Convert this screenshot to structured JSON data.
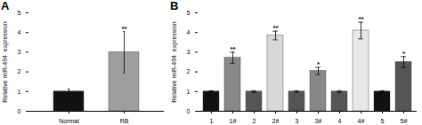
{
  "chart_data": [
    {
      "type": "bar",
      "title": "A",
      "categories": [
        "Normal",
        "RB"
      ],
      "values": [
        1.0,
        3.0
      ],
      "errors": [
        0.13,
        1.05
      ],
      "colors": [
        "#111111",
        "#9e9e9e"
      ],
      "annotations": [
        null,
        "**"
      ],
      "ylabel": "Relative miR-494  expression",
      "ylim": [
        0,
        5
      ],
      "yticks": [
        0,
        1,
        2,
        3,
        4,
        5
      ]
    },
    {
      "type": "bar",
      "title": "B",
      "categories": [
        "1",
        "1#",
        "2",
        "2#",
        "3",
        "3#",
        "4",
        "4#",
        "5",
        "5#"
      ],
      "values": [
        1.0,
        2.72,
        1.0,
        3.85,
        1.0,
        2.05,
        1.0,
        4.1,
        1.0,
        2.5
      ],
      "errors": [
        0.04,
        0.28,
        0.04,
        0.22,
        0.04,
        0.18,
        0.04,
        0.42,
        0.04,
        0.28
      ],
      "colors": [
        "#111111",
        "#888888",
        "#555555",
        "#d8d8d8",
        "#555555",
        "#888888",
        "#555555",
        "#e8e8e8",
        "#111111",
        "#555555"
      ],
      "annotations": [
        null,
        "**",
        null,
        "**",
        null,
        "*",
        null,
        "**",
        null,
        "*"
      ],
      "ylabel": "Relative miR-494  expression",
      "ylim": [
        0,
        5
      ],
      "yticks": [
        0,
        1,
        2,
        3,
        4,
        5
      ]
    }
  ]
}
